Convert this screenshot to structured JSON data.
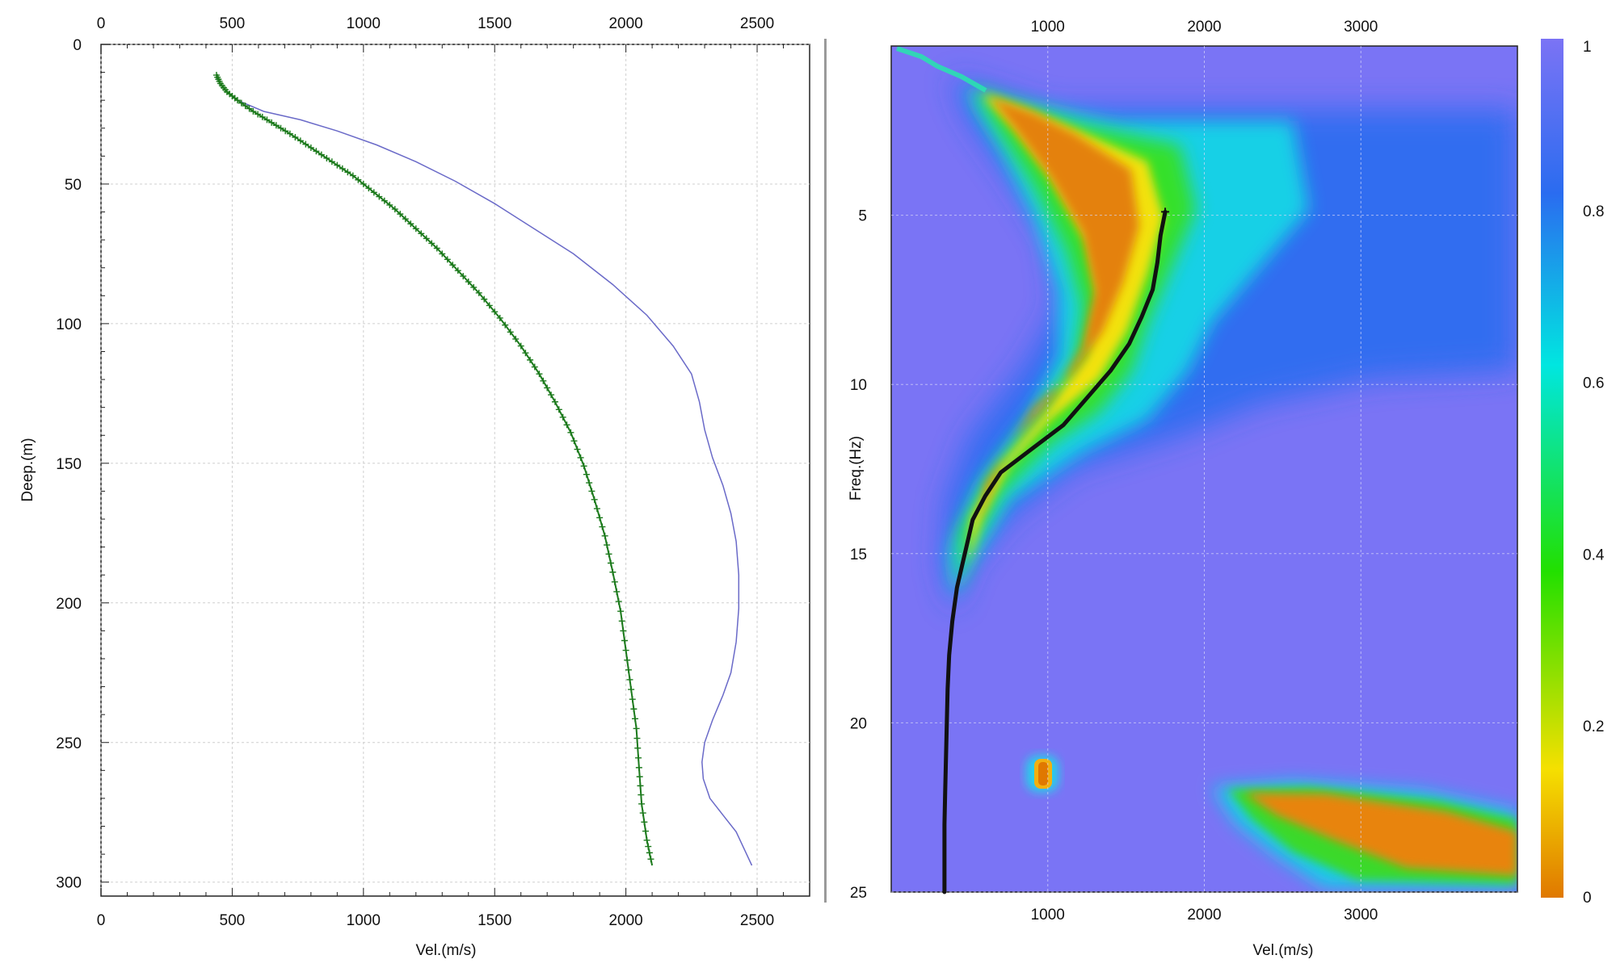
{
  "chart_data": [
    {
      "type": "line",
      "xlabel": "Vel.(m/s)",
      "ylabel": "Deep.(m)",
      "xlim": [
        0,
        2700
      ],
      "ylim": [
        0,
        305
      ],
      "y_inverted": true,
      "x_ticks": [
        0,
        500,
        1000,
        1500,
        2000,
        2500
      ],
      "y_ticks": [
        0,
        50,
        100,
        150,
        200,
        250,
        300
      ],
      "x_tick_labels": [
        "0",
        "500",
        "1000",
        "1500",
        "2000",
        "2500"
      ],
      "y_tick_labels": [
        "0",
        "50",
        "100",
        "150",
        "200",
        "250",
        "300"
      ],
      "axis_top_labels": true,
      "grid": true,
      "series": [
        {
          "color": "#6a6ac8",
          "style": "line",
          "points": [
            [
              440,
              12
            ],
            [
              470,
              16
            ],
            [
              520,
              20
            ],
            [
              620,
              24
            ],
            [
              760,
              27
            ],
            [
              900,
              31
            ],
            [
              1050,
              36
            ],
            [
              1200,
              42
            ],
            [
              1350,
              49
            ],
            [
              1500,
              57
            ],
            [
              1650,
              66
            ],
            [
              1800,
              75
            ],
            [
              1950,
              86
            ],
            [
              2080,
              97
            ],
            [
              2180,
              108
            ],
            [
              2250,
              118
            ],
            [
              2280,
              128
            ],
            [
              2300,
              138
            ],
            [
              2330,
              148
            ],
            [
              2370,
              158
            ],
            [
              2400,
              168
            ],
            [
              2420,
              178
            ],
            [
              2430,
              190
            ],
            [
              2430,
              202
            ],
            [
              2420,
              214
            ],
            [
              2400,
              225
            ],
            [
              2370,
              233
            ],
            [
              2330,
              242
            ],
            [
              2300,
              250
            ],
            [
              2290,
              257
            ],
            [
              2295,
              263
            ],
            [
              2320,
              270
            ],
            [
              2370,
              276
            ],
            [
              2420,
              282
            ],
            [
              2450,
              288
            ],
            [
              2480,
              294
            ]
          ]
        },
        {
          "color": "#1c7a1c",
          "style": "line-plus",
          "points": [
            [
              440,
              11
            ],
            [
              455,
              14
            ],
            [
              480,
              17
            ],
            [
              520,
              20
            ],
            [
              580,
              24
            ],
            [
              650,
              28
            ],
            [
              720,
              32
            ],
            [
              800,
              37
            ],
            [
              880,
              42
            ],
            [
              960,
              47
            ],
            [
              1040,
              53
            ],
            [
              1120,
              59
            ],
            [
              1200,
              66
            ],
            [
              1280,
              73
            ],
            [
              1360,
              81
            ],
            [
              1440,
              89
            ],
            [
              1520,
              98
            ],
            [
              1600,
              108
            ],
            [
              1670,
              118
            ],
            [
              1730,
              128
            ],
            [
              1790,
              139
            ],
            [
              1840,
              151
            ],
            [
              1880,
              163
            ],
            [
              1920,
              176
            ],
            [
              1950,
              189
            ],
            [
              1980,
              203
            ],
            [
              2000,
              217
            ],
            [
              2020,
              231
            ],
            [
              2040,
              245
            ],
            [
              2050,
              259
            ],
            [
              2060,
              272
            ],
            [
              2080,
              285
            ],
            [
              2100,
              294
            ]
          ]
        }
      ]
    },
    {
      "type": "heatmap",
      "xlabel": "Vel.(m/s)",
      "ylabel": "Freq.(Hz)",
      "xlim": [
        0,
        4000
      ],
      "ylim": [
        0,
        25
      ],
      "y_inverted": true,
      "x_ticks": [
        1000,
        2000,
        3000
      ],
      "y_ticks": [
        5,
        10,
        15,
        20,
        25
      ],
      "x_tick_labels": [
        "1000",
        "2000",
        "3000"
      ],
      "y_tick_labels": [
        "5",
        "10",
        "15",
        "20",
        "25"
      ],
      "grid": true,
      "colorbar": {
        "ticks": [
          0,
          0.2,
          0.4,
          0.6,
          0.8,
          1
        ],
        "tick_labels": [
          "0",
          "0.2",
          "0.4",
          "0.6",
          "0.8",
          "1"
        ],
        "stops": [
          "#e07800",
          "#f5e000",
          "#22e000",
          "#00e6e0",
          "#2a6cf0",
          "#7b73f5"
        ]
      },
      "background_color": "#7a74f5",
      "picked_curve": {
        "color": "#111111",
        "points": [
          [
            1750,
            4.9
          ],
          [
            1720,
            5.6
          ],
          [
            1700,
            6.4
          ],
          [
            1670,
            7.2
          ],
          [
            1600,
            8.0
          ],
          [
            1520,
            8.8
          ],
          [
            1400,
            9.6
          ],
          [
            1250,
            10.4
          ],
          [
            1100,
            11.2
          ],
          [
            900,
            11.9
          ],
          [
            700,
            12.6
          ],
          [
            600,
            13.3
          ],
          [
            520,
            14.0
          ],
          [
            470,
            15.0
          ],
          [
            420,
            16.0
          ],
          [
            390,
            17.0
          ],
          [
            370,
            18.0
          ],
          [
            360,
            19.0
          ],
          [
            355,
            20.0
          ],
          [
            350,
            21.0
          ],
          [
            345,
            22.0
          ],
          [
            340,
            23.0
          ],
          [
            340,
            24.0
          ],
          [
            340,
            25.0
          ]
        ]
      }
    }
  ]
}
